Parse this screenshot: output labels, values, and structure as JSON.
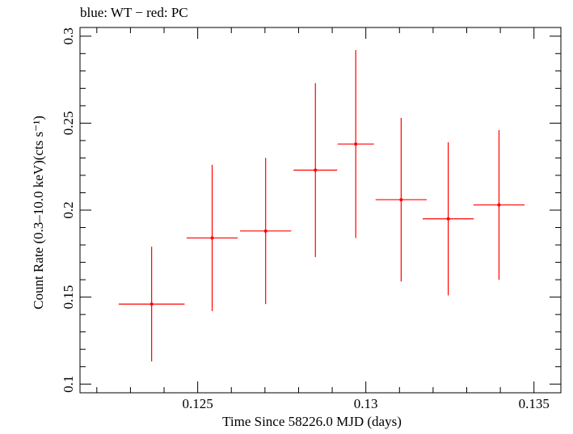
{
  "chart_data": {
    "type": "scatter",
    "title": "blue: WT − red: PC",
    "xlabel": "Time Since 58226.0 MJD (days)",
    "ylabel": "Count Rate (0.3–10.0 keV)(cts s⁻¹)",
    "xlim": [
      0.1215,
      0.1358
    ],
    "ylim": [
      0.095,
      0.305
    ],
    "x_ticks": [
      0.125,
      0.13,
      0.135
    ],
    "x_tick_labels": [
      "0.125",
      "0.13",
      "0.135"
    ],
    "y_ticks": [
      0.1,
      0.15,
      0.2,
      0.25,
      0.3
    ],
    "y_tick_labels": [
      "0.1",
      "0.15",
      "0.2",
      "0.25",
      "0.3"
    ],
    "grid": false,
    "colors": {
      "pc": "#ff0000",
      "axes": "#000000"
    },
    "series": [
      {
        "color": "#ff0000",
        "points": [
          {
            "x": 0.12363,
            "xerr": 0.00098,
            "y": 0.146,
            "yerr_low": 0.033,
            "yerr_high": 0.033
          },
          {
            "x": 0.12543,
            "xerr": 0.00076,
            "y": 0.184,
            "yerr_low": 0.042,
            "yerr_high": 0.042
          },
          {
            "x": 0.12702,
            "xerr": 0.00076,
            "y": 0.188,
            "yerr_low": 0.042,
            "yerr_high": 0.042
          },
          {
            "x": 0.1285,
            "xerr": 0.00065,
            "y": 0.223,
            "yerr_low": 0.05,
            "yerr_high": 0.05
          },
          {
            "x": 0.1297,
            "xerr": 0.00054,
            "y": 0.238,
            "yerr_low": 0.054,
            "yerr_high": 0.054
          },
          {
            "x": 0.13105,
            "xerr": 0.00076,
            "y": 0.206,
            "yerr_low": 0.047,
            "yerr_high": 0.047
          },
          {
            "x": 0.13245,
            "xerr": 0.00076,
            "y": 0.195,
            "yerr_low": 0.044,
            "yerr_high": 0.044
          },
          {
            "x": 0.13396,
            "xerr": 0.00076,
            "y": 0.203,
            "yerr_low": 0.043,
            "yerr_high": 0.043
          }
        ]
      }
    ]
  }
}
